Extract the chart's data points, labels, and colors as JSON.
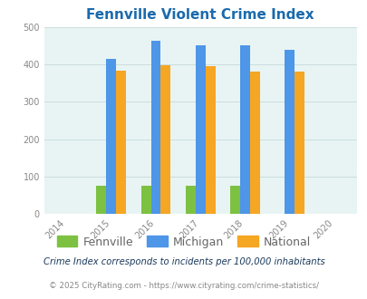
{
  "title": "Fennville Violent Crime Index",
  "years": [
    2015,
    2016,
    2017,
    2018,
    2019
  ],
  "fennville": [
    75,
    75,
    75,
    75,
    0
  ],
  "michigan": [
    415,
    462,
    450,
    450,
    438
  ],
  "national": [
    384,
    398,
    395,
    381,
    380
  ],
  "bar_colors": {
    "fennville": "#7dc142",
    "michigan": "#4d96e8",
    "national": "#f5a623"
  },
  "xlim": [
    2013.5,
    2020.5
  ],
  "ylim": [
    0,
    500
  ],
  "yticks": [
    0,
    100,
    200,
    300,
    400,
    500
  ],
  "xticks": [
    2014,
    2015,
    2016,
    2017,
    2018,
    2019,
    2020
  ],
  "bg_color": "#e8f4f4",
  "title_color": "#1a6aad",
  "axis_label_color": "#666666",
  "tick_color": "#888888",
  "legend_labels": [
    "Fennville",
    "Michigan",
    "National"
  ],
  "footnote1": "Crime Index corresponds to incidents per 100,000 inhabitants",
  "footnote2": "© 2025 CityRating.com - https://www.cityrating.com/crime-statistics/",
  "bar_width": 0.22,
  "grid_color": "#ccdddd",
  "footnote1_color": "#1a3a5c",
  "footnote2_color": "#888888"
}
